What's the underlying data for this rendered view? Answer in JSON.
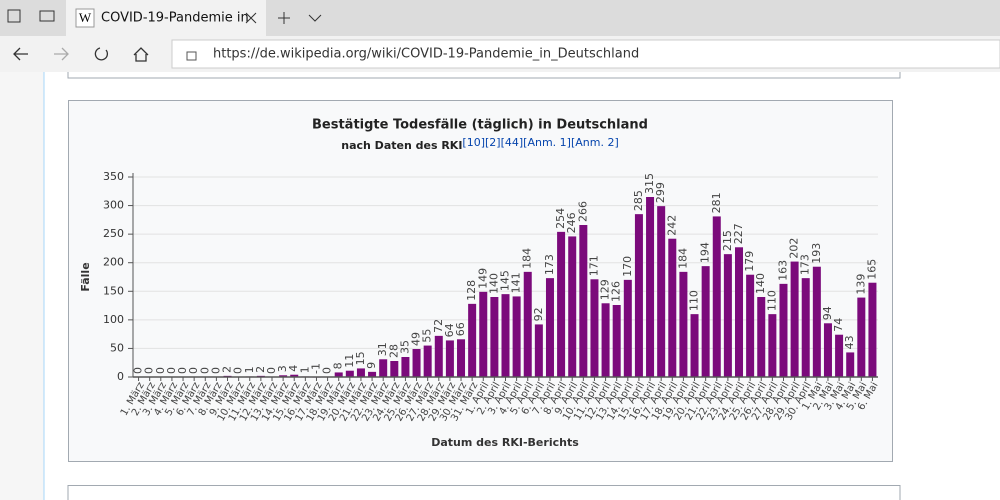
{
  "browser": {
    "tab_title": "COVID-19-Pandemie in",
    "url": "https://de.wikipedia.org/wiki/COVID-19-Pandemie_in_Deutschland"
  },
  "chart_data": {
    "type": "bar",
    "title": "Bestätigte Todesfälle (täglich) in Deutschland",
    "subtitle": "nach Daten des RKI",
    "references": "[10][2][44][Anm. 1][Anm. 2]",
    "ylabel": "Fälle",
    "xlabel": "Datum des RKI-Berichts",
    "categories": [
      "1. März",
      "2. März",
      "3. März",
      "4. März",
      "5. März",
      "6. März",
      "7. März",
      "8. März",
      "9. März",
      "10. März",
      "11. März",
      "12. März",
      "13. März",
      "14. März",
      "15. März",
      "16. März",
      "17. März",
      "18. März",
      "19. März",
      "20. März",
      "21. März",
      "22. März",
      "23. März",
      "24. März",
      "25. März",
      "26. März",
      "27. März",
      "28. März",
      "29. März",
      "30. März",
      "31. März",
      "1. April",
      "2. April",
      "3. April",
      "4. April",
      "5. April",
      "6. April",
      "7. April",
      "8. April",
      "9. April",
      "10. April",
      "11. April",
      "12. April",
      "13. April",
      "14. April",
      "15. April",
      "16. April",
      "17. April",
      "18. April",
      "19. April",
      "20. April",
      "21. April",
      "22. April",
      "23. April",
      "24. April",
      "25. April",
      "26. April",
      "27. April",
      "28. April",
      "29. April",
      "30. April",
      "1. Mai",
      "2. Mai",
      "3. Mai",
      "4. Mai",
      "5. Mai",
      "6. Mai"
    ],
    "values": [
      0,
      0,
      0,
      0,
      0,
      0,
      0,
      0,
      2,
      0,
      1,
      2,
      0,
      3,
      4,
      1,
      -1,
      0,
      8,
      11,
      15,
      9,
      31,
      28,
      35,
      49,
      55,
      72,
      64,
      66,
      128,
      149,
      140,
      145,
      141,
      184,
      92,
      173,
      254,
      246,
      266,
      171,
      129,
      126,
      170,
      285,
      315,
      299,
      242,
      184,
      110,
      194,
      281,
      215,
      227,
      179,
      140,
      110,
      163,
      202,
      173,
      193,
      94,
      74,
      43,
      139,
      165
    ],
    "color": "#7b0a7b",
    "ylim": [
      0,
      350
    ],
    "yticks": [
      0,
      50,
      100,
      150,
      200,
      250,
      300,
      350
    ],
    "grid": true
  }
}
